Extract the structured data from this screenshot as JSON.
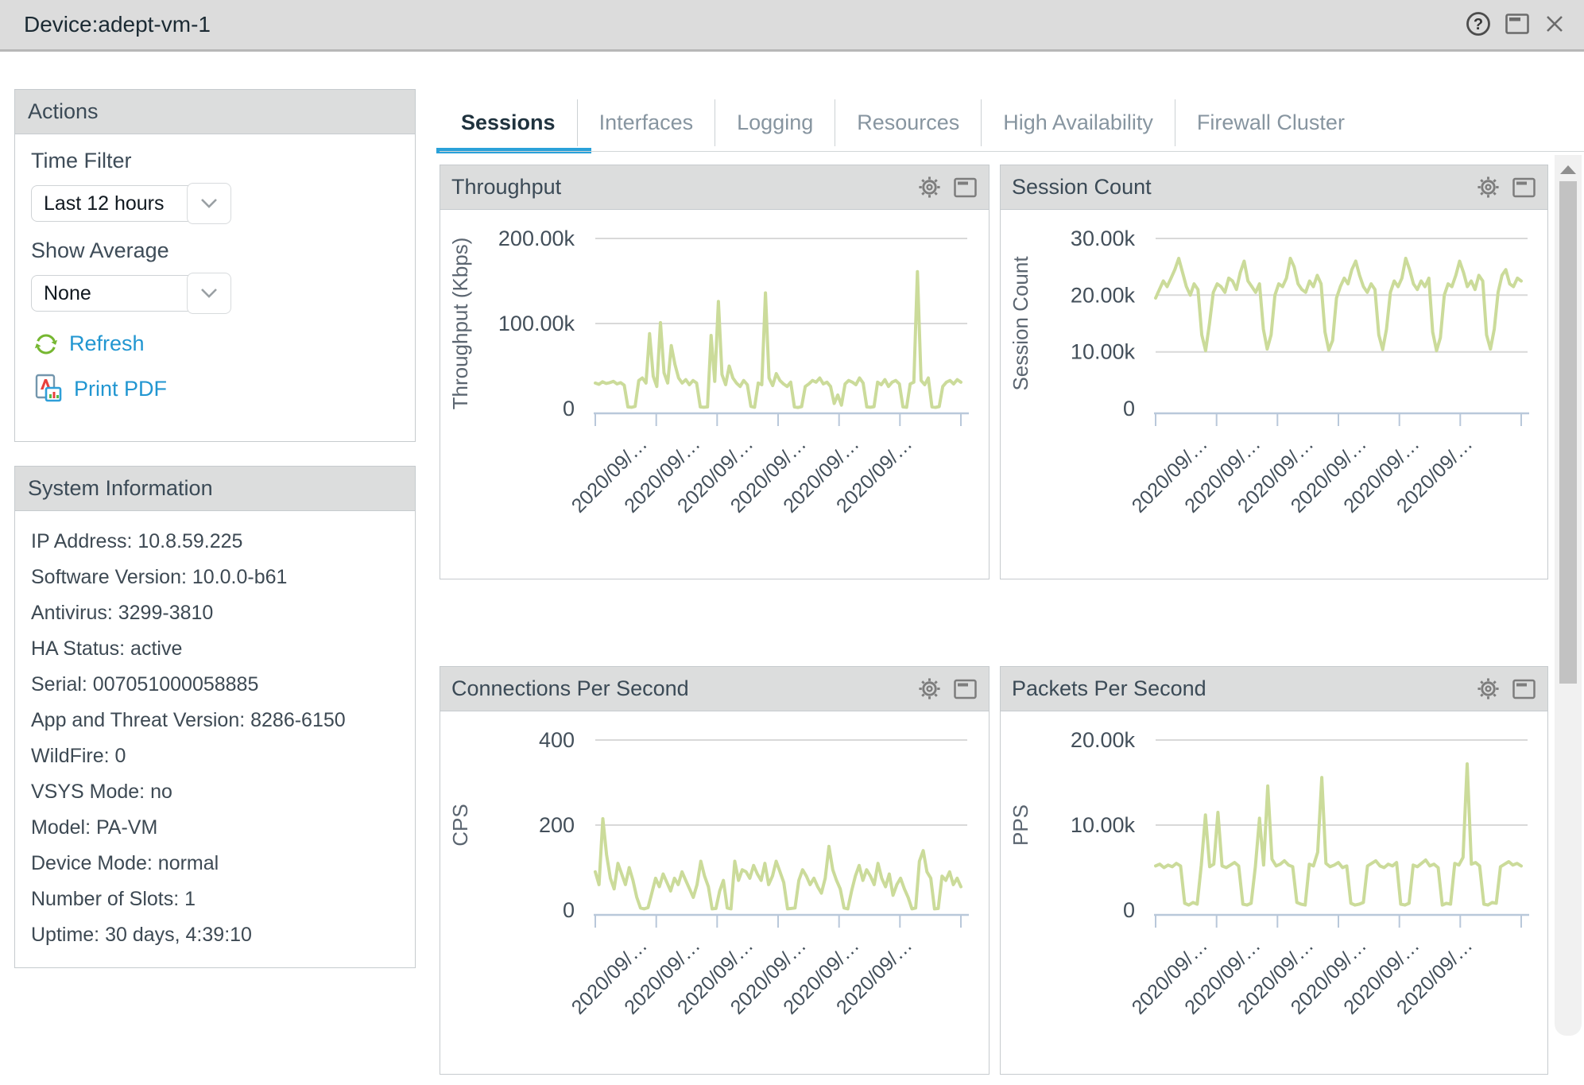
{
  "window": {
    "title": "Device:adept-vm-1"
  },
  "tabs": {
    "items": [
      {
        "label": "Sessions",
        "active": true
      },
      {
        "label": "Interfaces",
        "active": false
      },
      {
        "label": "Logging",
        "active": false
      },
      {
        "label": "Resources",
        "active": false
      },
      {
        "label": "High Availability",
        "active": false
      },
      {
        "label": "Firewall Cluster",
        "active": false
      }
    ]
  },
  "actions": {
    "title": "Actions",
    "time_filter_label": "Time Filter",
    "time_filter_value": "Last 12 hours",
    "show_average_label": "Show Average",
    "show_average_value": "None",
    "refresh_label": "Refresh",
    "print_pdf_label": "Print PDF"
  },
  "system_info": {
    "title": "System Information",
    "items": [
      "IP Address: 10.8.59.225",
      "Software Version: 10.0.0-b61",
      "Antivirus: 3299-3810",
      "HA Status: active",
      "Serial: 007051000058885",
      "App and Threat Version: 8286-6150",
      "WildFire: 0",
      "VSYS Mode: no",
      "Model: PA-VM",
      "Device Mode: normal",
      "Number of Slots: 1",
      "Uptime: 30 days, 4:39:10"
    ]
  },
  "icons": {
    "titlebar": [
      "help-icon",
      "window-icon",
      "close-icon"
    ],
    "chart_header": [
      "gear-icon",
      "panel-window-icon"
    ]
  },
  "colors": {
    "accent_blue": "#2aa1d9",
    "link_blue": "#2196d1",
    "chart_line": "#cbdb9a",
    "refresh_green": "#76b731",
    "axis_blue": "#b9c8da",
    "gridline": "#d9d9d9",
    "panel_header_bg": "#dcdddd",
    "titlebar_bg": "#dcdcdc"
  },
  "chart_data": [
    {
      "type": "line",
      "title": "Throughput",
      "ylabel": "Throughput (Kbps)",
      "xlabel": "",
      "ylim": [
        0,
        200000
      ],
      "grid": true,
      "legend": "none",
      "yticks": [
        {
          "value": 0,
          "label": "0"
        },
        {
          "value": 100000,
          "label": "100.00k"
        },
        {
          "value": 200000,
          "label": "200.00k"
        }
      ],
      "x_labels": [
        "2020/09/…",
        "2020/09/…",
        "2020/09/…",
        "2020/09/…",
        "2020/09/…",
        "2020/09/…"
      ],
      "values": [
        30000,
        28500,
        31500,
        29500,
        30500,
        32000,
        29000,
        30500,
        27500,
        2000,
        1500,
        2500,
        33000,
        36000,
        30000,
        88000,
        38000,
        26000,
        101000,
        42000,
        30000,
        74000,
        52000,
        36000,
        30000,
        34000,
        28000,
        33000,
        30000,
        2000,
        1500,
        2000,
        86000,
        32000,
        126000,
        40000,
        28000,
        50000,
        36000,
        30000,
        26000,
        33000,
        28000,
        2500,
        1500,
        30000,
        28000,
        136000,
        36000,
        27000,
        41000,
        33000,
        29000,
        26000,
        31000,
        2000,
        1200,
        2200,
        26000,
        29000,
        33000,
        31000,
        36000,
        29000,
        31000,
        26000,
        6000,
        16000,
        4000,
        29000,
        33000,
        31000,
        28000,
        36000,
        30000,
        2000,
        1500,
        2200,
        31000,
        28000,
        34000,
        26000,
        31000,
        33000,
        29000,
        2000,
        1500,
        29000,
        31000,
        161000,
        33000,
        28000,
        36000,
        2000,
        1400,
        2300,
        26000,
        31000,
        33000,
        29000,
        34000,
        31000
      ]
    },
    {
      "type": "line",
      "title": "Session Count",
      "ylabel": "Session Count",
      "xlabel": "",
      "ylim": [
        0,
        30000
      ],
      "grid": true,
      "legend": "none",
      "yticks": [
        {
          "value": 0,
          "label": "0"
        },
        {
          "value": 10000,
          "label": "10.00k"
        },
        {
          "value": 20000,
          "label": "20.00k"
        },
        {
          "value": 30000,
          "label": "30.00k"
        }
      ],
      "x_labels": [
        "2020/09/…",
        "2020/09/…",
        "2020/09/…",
        "2020/09/…",
        "2020/09/…",
        "2020/09/…"
      ],
      "values": [
        19500,
        21000,
        22500,
        21500,
        23000,
        24500,
        26500,
        24000,
        21500,
        20000,
        22000,
        21000,
        13000,
        10200,
        15000,
        20500,
        22000,
        21500,
        20500,
        23000,
        22500,
        21000,
        24000,
        26000,
        22500,
        21500,
        20500,
        22000,
        14000,
        10500,
        13000,
        20000,
        22000,
        21500,
        23000,
        26500,
        25000,
        22000,
        21000,
        20500,
        22500,
        21500,
        23500,
        22000,
        13500,
        10300,
        12000,
        19500,
        21500,
        23000,
        22000,
        24500,
        26000,
        23500,
        21500,
        20500,
        22000,
        21000,
        13000,
        10400,
        14000,
        20500,
        22500,
        21500,
        23000,
        26500,
        24500,
        22000,
        21000,
        22500,
        21500,
        23000,
        13500,
        10200,
        12500,
        20000,
        22000,
        21500,
        23500,
        26000,
        24000,
        21500,
        22500,
        21000,
        23500,
        22500,
        13000,
        10500,
        14000,
        20500,
        23500,
        24500,
        22000,
        21500,
        23000,
        22500
      ]
    },
    {
      "type": "line",
      "title": "Connections Per Second",
      "ylabel": "CPS",
      "xlabel": "",
      "ylim": [
        0,
        400
      ],
      "grid": true,
      "legend": "none",
      "yticks": [
        {
          "value": 0,
          "label": "0"
        },
        {
          "value": 200,
          "label": "200"
        },
        {
          "value": 400,
          "label": "400"
        }
      ],
      "x_labels": [
        "2020/09/…",
        "2020/09/…",
        "2020/09/…",
        "2020/09/…",
        "2020/09/…",
        "2020/09/…"
      ],
      "values": [
        90,
        60,
        215,
        130,
        75,
        50,
        110,
        85,
        60,
        100,
        70,
        30,
        5,
        3,
        6,
        40,
        75,
        55,
        85,
        65,
        45,
        75,
        60,
        90,
        70,
        50,
        30,
        60,
        115,
        80,
        55,
        3,
        4,
        45,
        70,
        5,
        3,
        115,
        70,
        95,
        90,
        75,
        105,
        85,
        70,
        110,
        60,
        80,
        115,
        90,
        65,
        3,
        4,
        5,
        70,
        95,
        80,
        60,
        75,
        55,
        40,
        75,
        150,
        95,
        70,
        50,
        5,
        3,
        45,
        80,
        105,
        70,
        95,
        80,
        60,
        110,
        75,
        55,
        85,
        35,
        60,
        75,
        50,
        30,
        3,
        5,
        115,
        140,
        90,
        75,
        3,
        4,
        80,
        70,
        90,
        60,
        75,
        55
      ]
    },
    {
      "type": "line",
      "title": "Packets Per Second",
      "ylabel": "PPS",
      "xlabel": "",
      "ylim": [
        0,
        20000
      ],
      "grid": true,
      "legend": "none",
      "yticks": [
        {
          "value": 0,
          "label": "0"
        },
        {
          "value": 10000,
          "label": "10.00k"
        },
        {
          "value": 20000,
          "label": "20.00k"
        }
      ],
      "x_labels": [
        "2020/09/…",
        "2020/09/…",
        "2020/09/…",
        "2020/09/…",
        "2020/09/…",
        "2020/09/…"
      ],
      "values": [
        5200,
        5400,
        5000,
        5300,
        5100,
        5500,
        5200,
        800,
        600,
        900,
        700,
        5300,
        11200,
        5100,
        5400,
        11500,
        5200,
        5000,
        5300,
        5600,
        5200,
        700,
        600,
        800,
        5100,
        10800,
        5300,
        14600,
        6000,
        5200,
        5400,
        5800,
        5300,
        5100,
        900,
        700,
        600,
        5400,
        5200,
        6800,
        15600,
        5500,
        5100,
        5300,
        5600,
        5000,
        5200,
        800,
        600,
        700,
        900,
        5200,
        5500,
        5800,
        5200,
        5000,
        5400,
        5200,
        5600,
        700,
        600,
        800,
        5300,
        5100,
        5500,
        5900,
        5200,
        5400,
        5000,
        600,
        800,
        700,
        5500,
        5300,
        6200,
        17200,
        5400,
        5600,
        5200,
        700,
        600,
        900,
        800,
        5100,
        5400,
        5700,
        5300,
        5500,
        5200
      ]
    }
  ]
}
